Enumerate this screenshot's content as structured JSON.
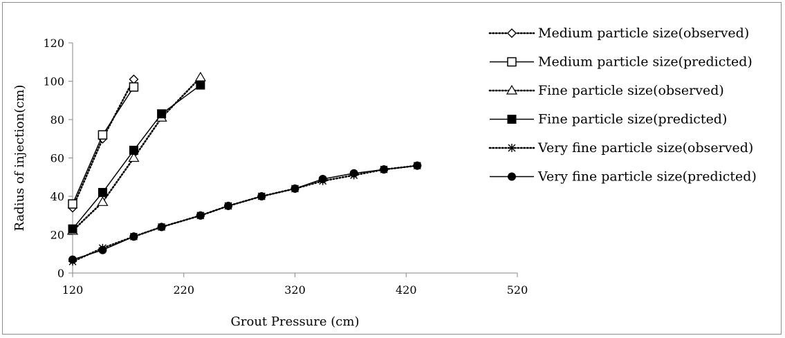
{
  "chart_data": {
    "type": "line",
    "title": "",
    "xlabel": "Grout Pressure (cm)",
    "ylabel": "Radius of injection(cm)",
    "xlim": [
      120,
      520
    ],
    "ylim": [
      0,
      120
    ],
    "x_ticks": [
      "120",
      "220",
      "320",
      "420",
      "520"
    ],
    "y_ticks": [
      "0",
      "20",
      "40",
      "60",
      "80",
      "100",
      "120"
    ],
    "grid": false,
    "legend_position": "right",
    "series": [
      {
        "name": "Medium particle size(observed)",
        "style": "dotted",
        "marker": "diamond-open",
        "x": [
          120,
          147,
          175
        ],
        "y": [
          34,
          70,
          101
        ]
      },
      {
        "name": "Medium particle size(predicted)",
        "style": "solid",
        "marker": "square-open",
        "x": [
          120,
          147,
          175
        ],
        "y": [
          36,
          72,
          97
        ]
      },
      {
        "name": "Fine particle size(observed)",
        "style": "dotted",
        "marker": "triangle-open",
        "x": [
          120,
          147,
          175,
          200,
          235
        ],
        "y": [
          22,
          37,
          60,
          81,
          102
        ]
      },
      {
        "name": "Fine particle size(predicted)",
        "style": "solid",
        "marker": "square-filled",
        "x": [
          120,
          147,
          175,
          200,
          235
        ],
        "y": [
          23,
          42,
          64,
          83,
          98
        ]
      },
      {
        "name": "Very fine particle size(observed)",
        "style": "dotted",
        "marker": "asterisk",
        "x": [
          120,
          147,
          175,
          200,
          235,
          260,
          290,
          320,
          345,
          373,
          400,
          430
        ],
        "y": [
          6,
          13,
          19,
          24,
          30,
          35,
          40,
          44,
          48,
          51,
          54,
          56
        ]
      },
      {
        "name": "Very fine particle size(predicted)",
        "style": "solid",
        "marker": "circle-filled",
        "x": [
          120,
          147,
          175,
          200,
          235,
          260,
          290,
          320,
          345,
          373,
          400,
          430
        ],
        "y": [
          7,
          12,
          19,
          24,
          30,
          35,
          40,
          44,
          49,
          52,
          54,
          56
        ]
      }
    ]
  }
}
